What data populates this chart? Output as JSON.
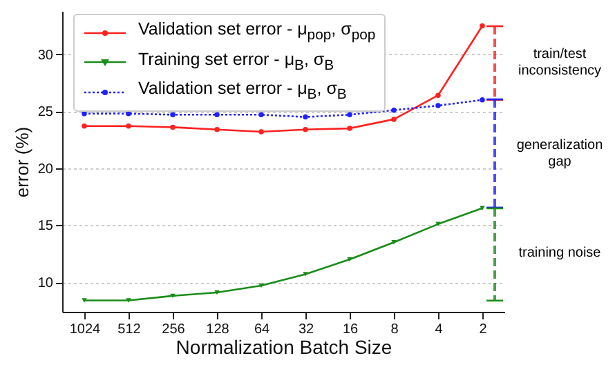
{
  "chart_data": {
    "type": "line",
    "xlabel": "Normalization Batch Size",
    "ylabel": "error (%)",
    "categories": [
      "1024",
      "512",
      "256",
      "128",
      "64",
      "32",
      "16",
      "8",
      "4",
      "2"
    ],
    "series": [
      {
        "name": "Validation set error - μ$_{pop}$, σ$_{pop}$",
        "color": "#ff2020",
        "marker": "circle",
        "line_style": "solid",
        "values": [
          23.7,
          23.7,
          23.6,
          23.4,
          23.2,
          23.4,
          23.5,
          24.3,
          26.4,
          32.5
        ]
      },
      {
        "name": "Training set error - μ$_{B}$, σ$_{B}$",
        "color": "#1a8c1a",
        "marker": "triangle",
        "line_style": "solid",
        "values": [
          8.4,
          8.4,
          8.8,
          9.1,
          9.7,
          10.7,
          12.0,
          13.5,
          15.1,
          16.5
        ]
      },
      {
        "name": "Validation set error - μ$_{B}$, σ$_{B}$",
        "color": "#2020ff",
        "marker": "circle",
        "line_style": "dotted",
        "values": [
          24.8,
          24.8,
          24.7,
          24.7,
          24.7,
          24.5,
          24.7,
          25.1,
          25.5,
          26.0
        ]
      }
    ],
    "annotations": [
      "train/test inconsistency",
      "generalization gap",
      "training noise"
    ],
    "ylim": [
      7.4,
      33.8
    ],
    "yticks": [
      10,
      15,
      20,
      25,
      30
    ],
    "grid": "y",
    "legend": "top left"
  }
}
